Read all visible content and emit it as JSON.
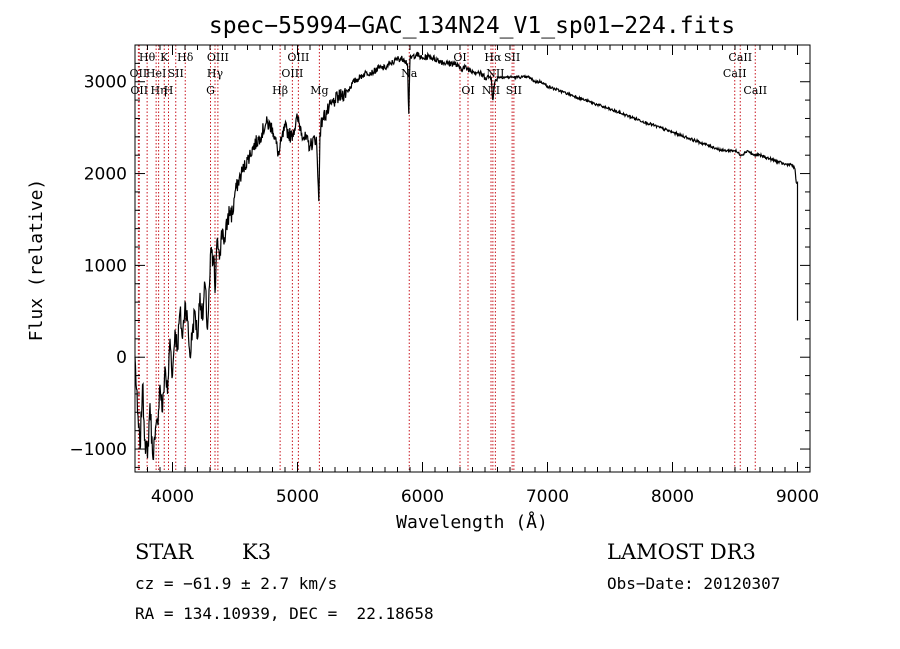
{
  "chart_data": {
    "type": "line",
    "title": "spec−55994−GAC_134N24_V1_sp01−224.fits",
    "xlabel": "Wavelength (Å)",
    "ylabel": "Flux (relative)",
    "xlim": [
      3700,
      9100
    ],
    "ylim": [
      -1250,
      3400
    ],
    "xticks": [
      4000,
      5000,
      6000,
      7000,
      8000,
      9000
    ],
    "xtick_labels": [
      "4000",
      "5000",
      "6000",
      "7000",
      "8000",
      "9000"
    ],
    "yticks": [
      -1000,
      0,
      1000,
      2000,
      3000
    ],
    "ytick_labels": [
      "−1000",
      "0",
      "1000",
      "2000",
      "3000"
    ],
    "series": [
      {
        "name": "spectrum",
        "color": "#000000",
        "x": [
          3700,
          3720,
          3740,
          3760,
          3780,
          3800,
          3820,
          3840,
          3860,
          3880,
          3900,
          3920,
          3940,
          3960,
          3980,
          4000,
          4020,
          4040,
          4060,
          4080,
          4100,
          4120,
          4140,
          4160,
          4180,
          4200,
          4220,
          4240,
          4260,
          4280,
          4300,
          4310,
          4320,
          4330,
          4340,
          4360,
          4380,
          4400,
          4420,
          4440,
          4460,
          4480,
          4500,
          4550,
          4600,
          4650,
          4700,
          4750,
          4800,
          4850,
          4870,
          4900,
          4950,
          5000,
          5050,
          5100,
          5150,
          5170,
          5180,
          5200,
          5250,
          5300,
          5350,
          5400,
          5450,
          5500,
          5550,
          5600,
          5650,
          5700,
          5750,
          5800,
          5850,
          5880,
          5890,
          5900,
          5950,
          6000,
          6050,
          6100,
          6150,
          6200,
          6250,
          6300,
          6350,
          6400,
          6450,
          6500,
          6550,
          6562,
          6580,
          6600,
          6650,
          6700,
          6750,
          6800,
          6850,
          6900,
          6950,
          7000,
          7100,
          7200,
          7300,
          7400,
          7500,
          7600,
          7700,
          7800,
          7900,
          8000,
          8100,
          8200,
          8300,
          8400,
          8500,
          8550,
          8600,
          8650,
          8700,
          8800,
          8900,
          8950,
          8980,
          8990,
          9000,
          9000
        ],
        "y": [
          0,
          -600,
          -1000,
          -300,
          -900,
          -1100,
          -500,
          -1050,
          -900,
          -700,
          -300,
          -600,
          -100,
          -400,
          200,
          -200,
          300,
          100,
          500,
          200,
          600,
          400,
          0,
          300,
          500,
          200,
          700,
          400,
          800,
          300,
          900,
          1200,
          1000,
          1100,
          700,
          1300,
          1150,
          1400,
          1250,
          1500,
          1600,
          1550,
          1800,
          2000,
          2150,
          2300,
          2400,
          2550,
          2500,
          2200,
          2350,
          2500,
          2400,
          2600,
          2400,
          2300,
          2400,
          1700,
          2450,
          2600,
          2700,
          2800,
          2850,
          2900,
          3000,
          3050,
          3100,
          3100,
          3150,
          3150,
          3200,
          3250,
          3250,
          3200,
          2650,
          3250,
          3300,
          3250,
          3280,
          3250,
          3220,
          3200,
          3200,
          3150,
          3150,
          3120,
          3100,
          3050,
          3050,
          2800,
          3000,
          3050,
          3050,
          3050,
          3050,
          3050,
          3050,
          3000,
          3000,
          2950,
          2900,
          2850,
          2800,
          2750,
          2700,
          2650,
          2600,
          2550,
          2500,
          2450,
          2400,
          2350,
          2300,
          2250,
          2250,
          2200,
          2250,
          2200,
          2200,
          2150,
          2100,
          2100,
          2050,
          1900,
          1900,
          400
        ]
      }
    ],
    "line_marks": [
      {
        "wavelength": 3727,
        "label": "OII",
        "row": 2
      },
      {
        "wavelength": 3734,
        "label": "OII",
        "row": 3
      },
      {
        "wavelength": 3797,
        "label": "Hθ",
        "row": 1
      },
      {
        "wavelength": 3869,
        "label": "HeI",
        "row": 2
      },
      {
        "wavelength": 3889,
        "label": "Hη",
        "row": 3
      },
      {
        "wavelength": 3934,
        "label": "K",
        "row": 1
      },
      {
        "wavelength": 3968,
        "label": "H",
        "row": 3
      },
      {
        "wavelength": 4026,
        "label": "SII",
        "row": 2
      },
      {
        "wavelength": 4102,
        "label": "Hδ",
        "row": 1
      },
      {
        "wavelength": 4304,
        "label": "G",
        "row": 3
      },
      {
        "wavelength": 4340,
        "label": "Hγ",
        "row": 2
      },
      {
        "wavelength": 4363,
        "label": "OIII",
        "row": 1
      },
      {
        "wavelength": 4861,
        "label": "Hβ",
        "row": 3
      },
      {
        "wavelength": 4959,
        "label": "OIII",
        "row": 2
      },
      {
        "wavelength": 5007,
        "label": "OIII",
        "row": 1
      },
      {
        "wavelength": 5175,
        "label": "Mg",
        "row": 3
      },
      {
        "wavelength": 5894,
        "label": "Na",
        "row": 2
      },
      {
        "wavelength": 6300,
        "label": "OI",
        "row": 1
      },
      {
        "wavelength": 6364,
        "label": "OI",
        "row": 3
      },
      {
        "wavelength": 6548,
        "label": "NII",
        "row": 3
      },
      {
        "wavelength": 6563,
        "label": "Hα",
        "row": 1
      },
      {
        "wavelength": 6583,
        "label": "NII",
        "row": 2
      },
      {
        "wavelength": 6717,
        "label": "SII",
        "row": 1
      },
      {
        "wavelength": 6731,
        "label": "SII",
        "row": 3
      },
      {
        "wavelength": 8498,
        "label": "CaII",
        "row": 2
      },
      {
        "wavelength": 8542,
        "label": "CaII",
        "row": 1
      },
      {
        "wavelength": 8662,
        "label": "CaII",
        "row": 3
      }
    ],
    "line_mark_color": "#c8141e"
  },
  "footer": {
    "object_class": "STAR",
    "subclass": "K3",
    "survey": "LAMOST DR3",
    "cz": "cz = −61.9 ± 2.7 km/s",
    "obs_date": "Obs−Date: 20120307",
    "radec": "RA = 134.10939, DEC =  22.18658"
  }
}
